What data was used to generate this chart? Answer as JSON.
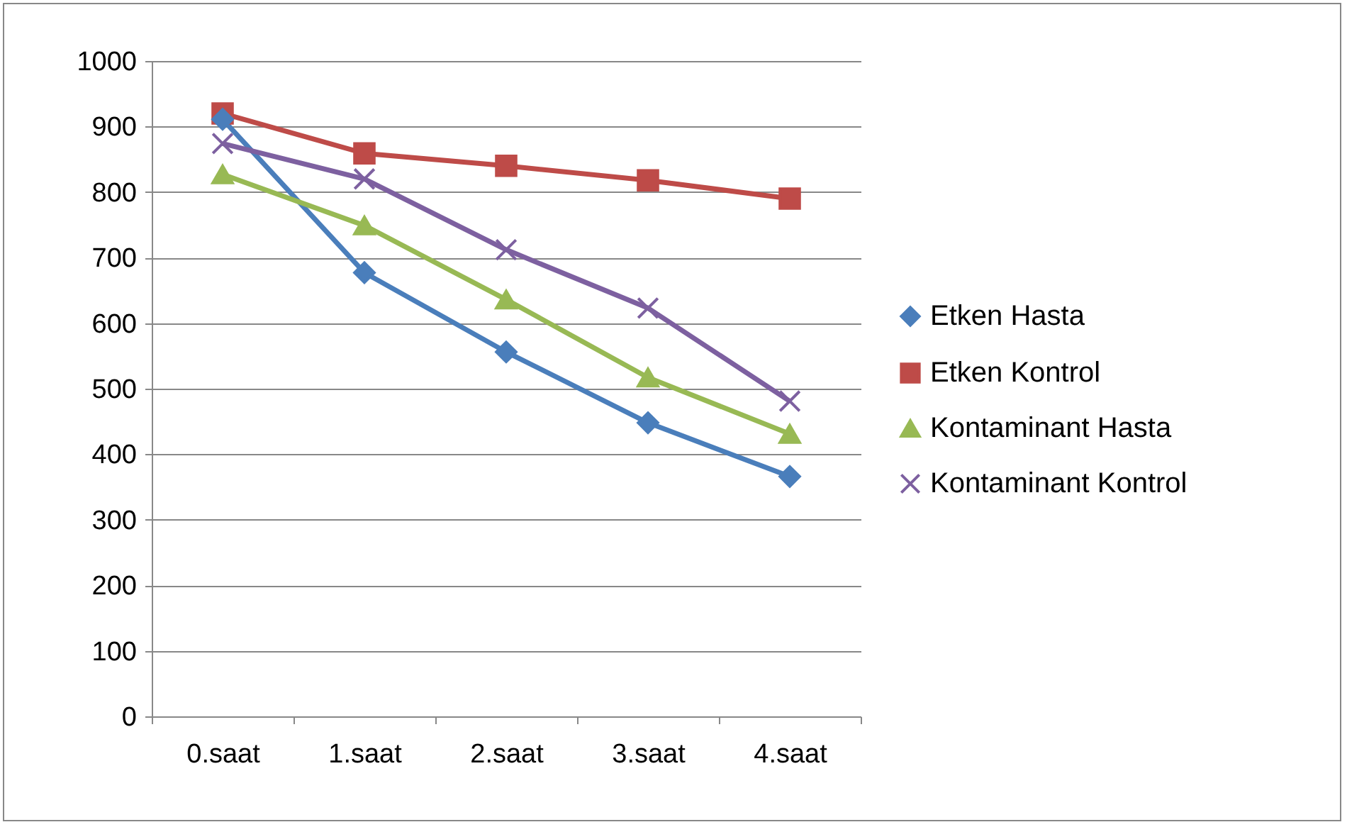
{
  "chart_data": {
    "type": "line",
    "categories": [
      "0.saat",
      "1.saat",
      "2.saat",
      "3.saat",
      "4.saat"
    ],
    "series": [
      {
        "name": "Etken Hasta",
        "color": "#4a7ebb",
        "marker": "diamond",
        "values": [
          911,
          677,
          556,
          448,
          366
        ]
      },
      {
        "name": "Etken Kontrol",
        "color": "#be4b48",
        "marker": "square",
        "values": [
          920,
          859,
          840,
          818,
          790
        ]
      },
      {
        "name": "Kontaminant Hasta",
        "color": "#98b954",
        "marker": "triangle",
        "values": [
          827,
          749,
          636,
          517,
          431
        ]
      },
      {
        "name": "Kontaminant Kontrol",
        "color": "#7d60a0",
        "marker": "cross",
        "values": [
          874,
          820,
          712,
          623,
          481
        ]
      }
    ],
    "ylim": [
      0,
      1000
    ],
    "yticks": [
      0,
      100,
      200,
      300,
      400,
      500,
      600,
      700,
      800,
      900,
      1000
    ],
    "grid": "y",
    "legend": "right",
    "line_style": "solid"
  }
}
